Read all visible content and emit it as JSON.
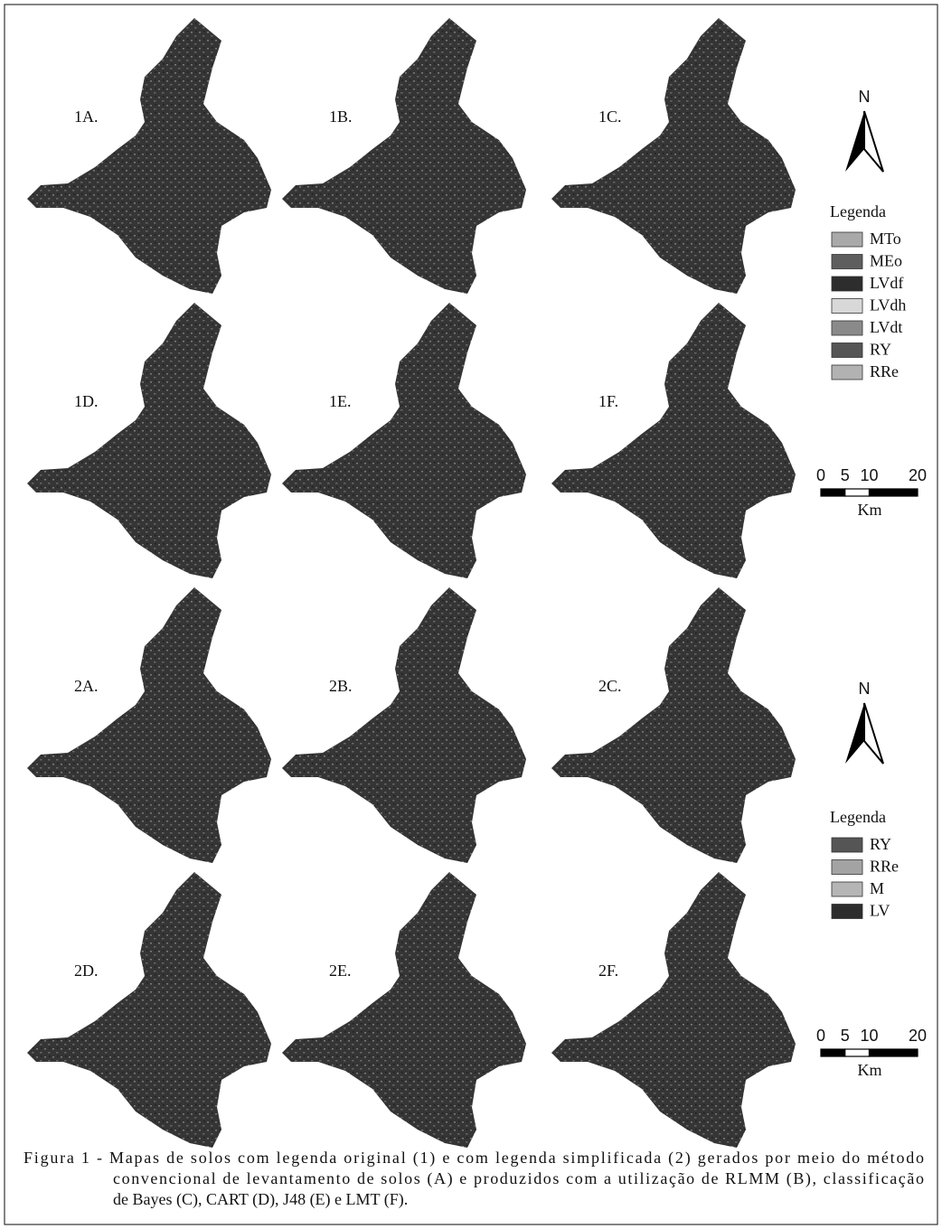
{
  "panels": [
    "1A.",
    "1B.",
    "1C.",
    "1D.",
    "1E.",
    "1F.",
    "2A.",
    "2B.",
    "2C.",
    "2D.",
    "2E.",
    "2F."
  ],
  "legends": [
    {
      "north": "N",
      "title": "Legenda",
      "items": [
        {
          "name": "MTo",
          "color": "#a9a9a9"
        },
        {
          "name": "MEo",
          "color": "#5e5e5e"
        },
        {
          "name": "LVdf",
          "color": "#2d2d2d"
        },
        {
          "name": "LVdh",
          "color": "#d8d8d8"
        },
        {
          "name": "LVdt",
          "color": "#8a8a8a"
        },
        {
          "name": "RY",
          "color": "#555555"
        },
        {
          "name": "RRe",
          "color": "#b2b2b2"
        }
      ],
      "scale": {
        "ticks": [
          0,
          5,
          10,
          20
        ],
        "unit": "Km"
      }
    },
    {
      "north": "N",
      "title": "Legenda",
      "items": [
        {
          "name": "RY",
          "color": "#555555"
        },
        {
          "name": "RRe",
          "color": "#a3a3a3"
        },
        {
          "name": "M",
          "color": "#b5b5b5"
        },
        {
          "name": "LV",
          "color": "#2d2d2d"
        }
      ],
      "scale": {
        "ticks": [
          0,
          5,
          10,
          20
        ],
        "unit": "Km"
      }
    }
  ],
  "caption": {
    "lines": [
      "Figura 1 - Mapas de solos com legenda original (1) e com legenda simplificada (2) gerados por meio do método",
      "convencional de levantamento de solos (A) e produzidos com a utilização de RLMM (B), classificação",
      "de Bayes (C), CART (D), J48 (E) e LMT (F)."
    ]
  }
}
